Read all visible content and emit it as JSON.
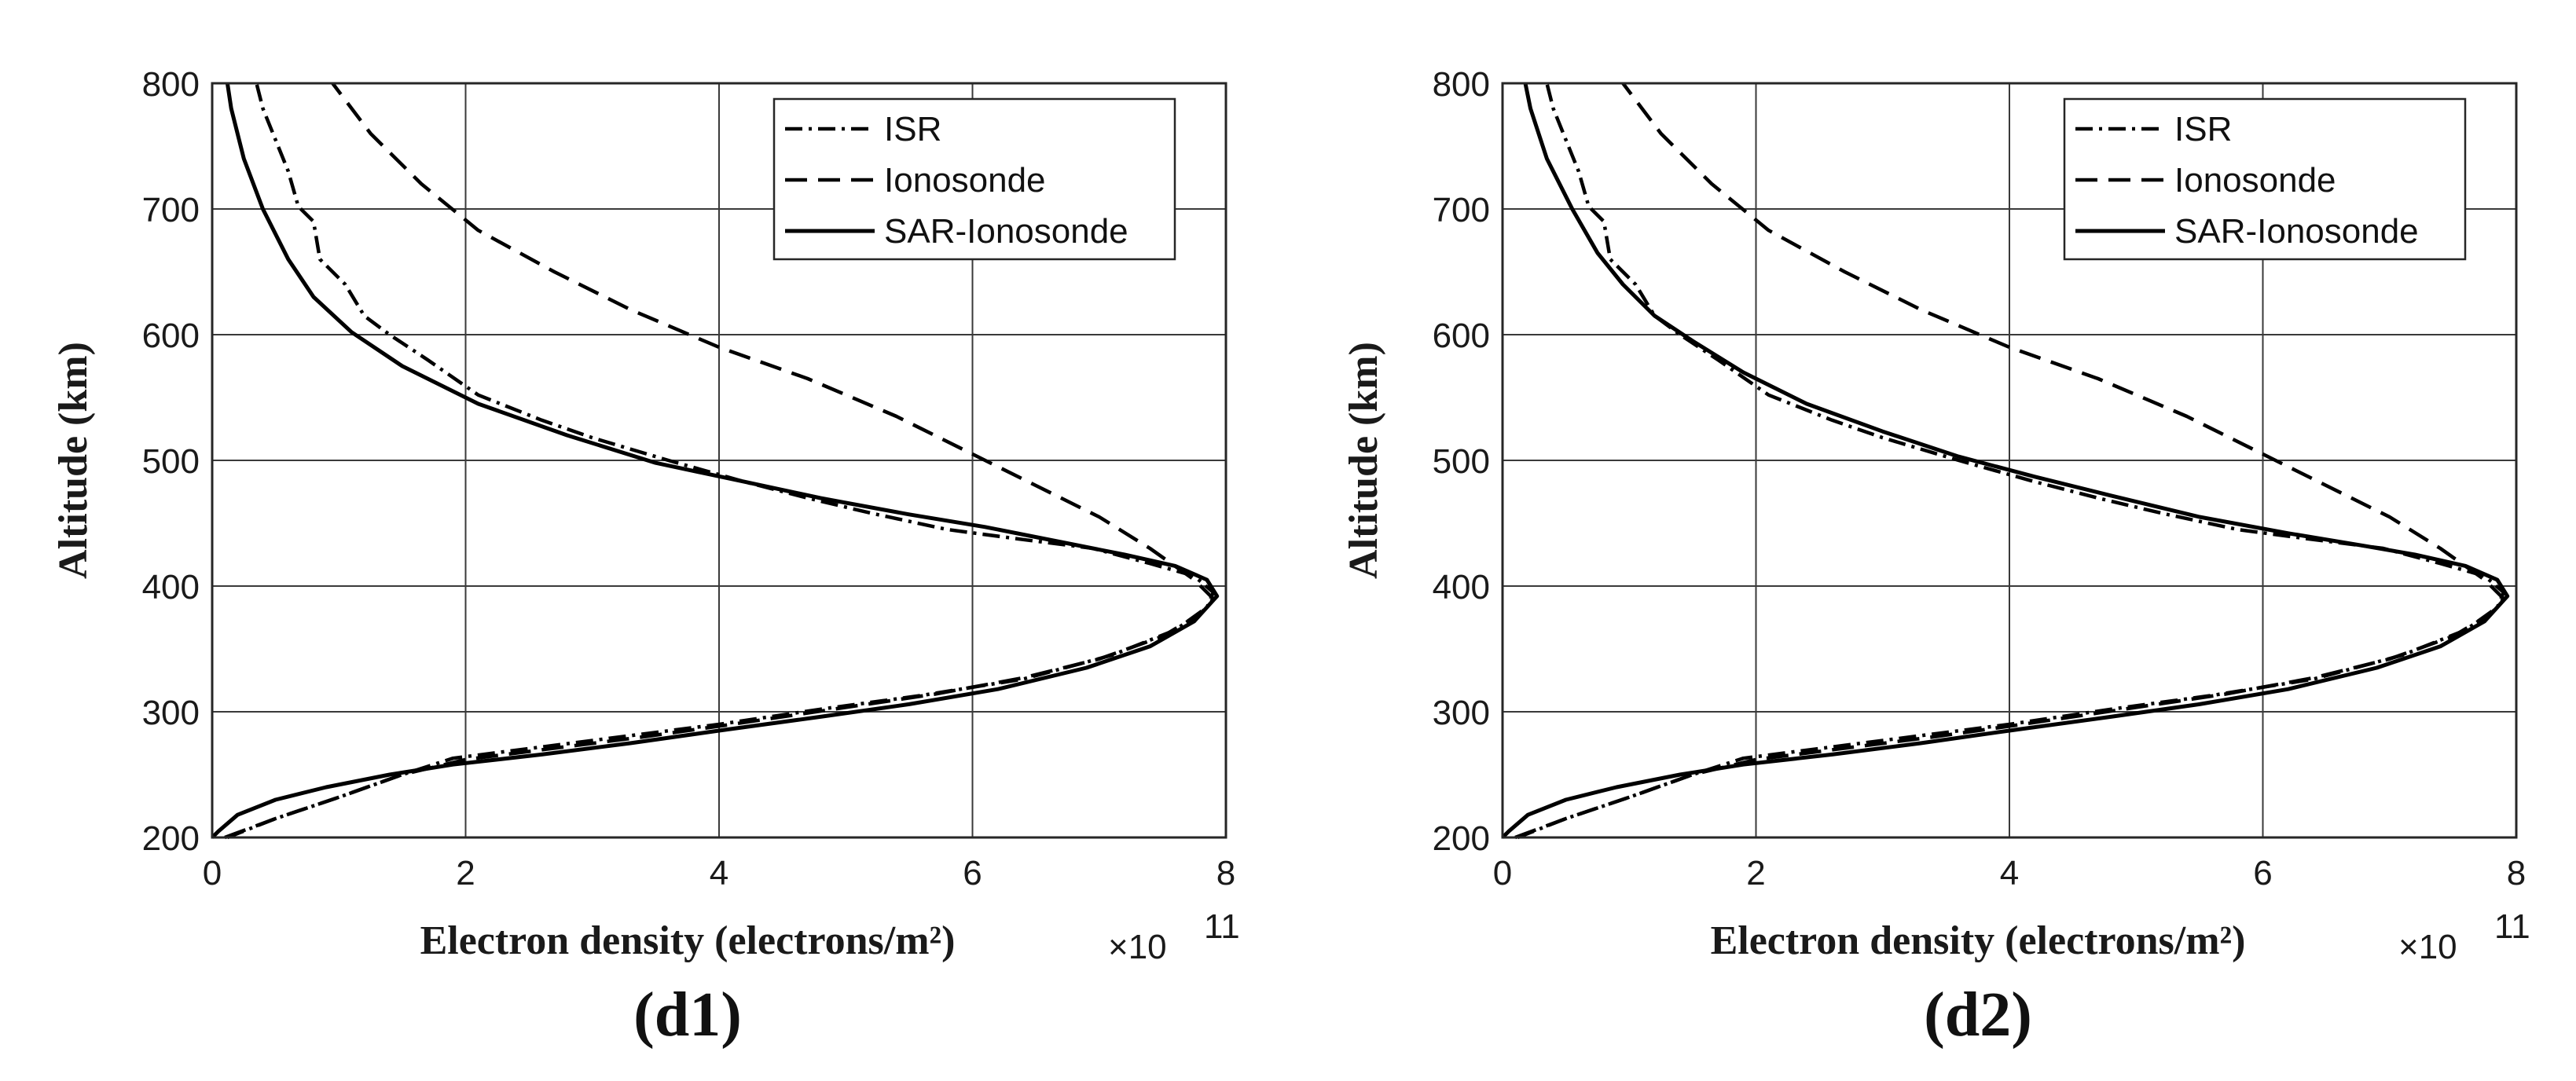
{
  "chart_data": [
    {
      "type": "line",
      "panel_label": "(d1)",
      "xlabel": "Electron density (electrons/m²)",
      "x_multiplier": "×10",
      "x_multiplier_exp": "11",
      "ylabel": "Altitude (km)",
      "xlim": [
        0,
        8
      ],
      "ylim": [
        200,
        800
      ],
      "xticks": [
        "0",
        "2",
        "4",
        "6",
        "8"
      ],
      "yticks": [
        "200",
        "300",
        "400",
        "500",
        "600",
        "700",
        "800"
      ],
      "grid": true,
      "legend_position": "top-right",
      "series": [
        {
          "name": "ISR",
          "style": "dashdot",
          "points": [
            [
              0.12,
              200
            ],
            [
              0.5,
              215
            ],
            [
              1.0,
              232
            ],
            [
              1.5,
              250
            ],
            [
              1.9,
              263
            ],
            [
              2.6,
              272
            ],
            [
              3.3,
              281
            ],
            [
              4.0,
              290
            ],
            [
              4.8,
              302
            ],
            [
              5.6,
              313
            ],
            [
              6.4,
              326
            ],
            [
              7.1,
              345
            ],
            [
              7.6,
              365
            ],
            [
              7.85,
              383
            ],
            [
              7.9,
              395
            ],
            [
              7.75,
              408
            ],
            [
              7.4,
              418
            ],
            [
              6.95,
              430
            ],
            [
              6.4,
              437
            ],
            [
              5.8,
              445
            ],
            [
              5.2,
              458
            ],
            [
              4.7,
              470
            ],
            [
              4.2,
              483
            ],
            [
              3.6,
              500
            ],
            [
              3.0,
              518
            ],
            [
              2.6,
              532
            ],
            [
              2.1,
              552
            ],
            [
              1.7,
              580
            ],
            [
              1.4,
              600
            ],
            [
              1.2,
              615
            ],
            [
              1.05,
              640
            ],
            [
              0.85,
              660
            ],
            [
              0.8,
              690
            ],
            [
              0.68,
              702
            ],
            [
              0.6,
              730
            ],
            [
              0.5,
              755
            ],
            [
              0.4,
              780
            ],
            [
              0.35,
              800
            ]
          ]
        },
        {
          "name": "Ionosonde",
          "style": "dashed",
          "points": [
            [
              0.1,
              200
            ],
            [
              0.5,
              215
            ],
            [
              1.0,
              232
            ],
            [
              1.5,
              250
            ],
            [
              2.0,
              262
            ],
            [
              2.7,
              271
            ],
            [
              3.4,
              280
            ],
            [
              4.1,
              290
            ],
            [
              4.9,
              302
            ],
            [
              5.7,
              314
            ],
            [
              6.4,
              327
            ],
            [
              7.0,
              342
            ],
            [
              7.5,
              360
            ],
            [
              7.8,
              378
            ],
            [
              7.9,
              390
            ],
            [
              7.75,
              405
            ],
            [
              7.4,
              430
            ],
            [
              7.0,
              455
            ],
            [
              6.5,
              480
            ],
            [
              6.0,
              505
            ],
            [
              5.4,
              535
            ],
            [
              4.7,
              565
            ],
            [
              4.0,
              590
            ],
            [
              3.3,
              620
            ],
            [
              2.7,
              650
            ],
            [
              2.1,
              683
            ],
            [
              1.65,
              720
            ],
            [
              1.25,
              760
            ],
            [
              0.95,
              800
            ]
          ]
        },
        {
          "name": "SAR-Ionosonde",
          "style": "solid",
          "points": [
            [
              0.0,
              200
            ],
            [
              0.05,
              205
            ],
            [
              0.2,
              218
            ],
            [
              0.5,
              230
            ],
            [
              0.9,
              240
            ],
            [
              1.4,
              250
            ],
            [
              1.9,
              258
            ],
            [
              2.6,
              266
            ],
            [
              3.3,
              275
            ],
            [
              4.0,
              285
            ],
            [
              4.8,
              296
            ],
            [
              5.5,
              306
            ],
            [
              6.2,
              318
            ],
            [
              6.9,
              335
            ],
            [
              7.4,
              352
            ],
            [
              7.75,
              372
            ],
            [
              7.93,
              392
            ],
            [
              7.85,
              405
            ],
            [
              7.6,
              416
            ],
            [
              7.2,
              425
            ],
            [
              6.7,
              435
            ],
            [
              6.1,
              447
            ],
            [
              5.5,
              457
            ],
            [
              4.8,
              470
            ],
            [
              4.2,
              483
            ],
            [
              3.5,
              498
            ],
            [
              2.8,
              520
            ],
            [
              2.1,
              545
            ],
            [
              1.5,
              575
            ],
            [
              1.1,
              602
            ],
            [
              0.8,
              630
            ],
            [
              0.6,
              660
            ],
            [
              0.4,
              700
            ],
            [
              0.25,
              740
            ],
            [
              0.15,
              780
            ],
            [
              0.12,
              800
            ]
          ]
        }
      ]
    },
    {
      "type": "line",
      "panel_label": "(d2)",
      "xlabel": "Electron density (electrons/m²)",
      "x_multiplier": "×10",
      "x_multiplier_exp": "11",
      "ylabel": "Altitude (km)",
      "xlim": [
        0,
        8
      ],
      "ylim": [
        200,
        800
      ],
      "xticks": [
        "0",
        "2",
        "4",
        "6",
        "8"
      ],
      "yticks": [
        "200",
        "300",
        "400",
        "500",
        "600",
        "700",
        "800"
      ],
      "grid": true,
      "legend_position": "top-right",
      "series": [
        {
          "name": "ISR",
          "style": "dashdot",
          "points": [
            [
              0.12,
              200
            ],
            [
              0.5,
              215
            ],
            [
              1.0,
              232
            ],
            [
              1.5,
              250
            ],
            [
              1.9,
              263
            ],
            [
              2.6,
              272
            ],
            [
              3.3,
              281
            ],
            [
              4.0,
              290
            ],
            [
              4.8,
              302
            ],
            [
              5.6,
              313
            ],
            [
              6.4,
              326
            ],
            [
              7.1,
              345
            ],
            [
              7.6,
              365
            ],
            [
              7.85,
              383
            ],
            [
              7.9,
              395
            ],
            [
              7.75,
              408
            ],
            [
              7.4,
              418
            ],
            [
              6.95,
              430
            ],
            [
              6.4,
              437
            ],
            [
              5.8,
              445
            ],
            [
              5.2,
              458
            ],
            [
              4.7,
              470
            ],
            [
              4.2,
              483
            ],
            [
              3.6,
              500
            ],
            [
              3.0,
              518
            ],
            [
              2.6,
              532
            ],
            [
              2.1,
              552
            ],
            [
              1.7,
              580
            ],
            [
              1.4,
              600
            ],
            [
              1.2,
              615
            ],
            [
              1.05,
              640
            ],
            [
              0.85,
              660
            ],
            [
              0.8,
              690
            ],
            [
              0.68,
              702
            ],
            [
              0.6,
              730
            ],
            [
              0.5,
              755
            ],
            [
              0.4,
              780
            ],
            [
              0.35,
              800
            ]
          ]
        },
        {
          "name": "Ionosonde",
          "style": "dashed",
          "points": [
            [
              0.1,
              200
            ],
            [
              0.5,
              215
            ],
            [
              1.0,
              232
            ],
            [
              1.5,
              250
            ],
            [
              2.0,
              262
            ],
            [
              2.7,
              271
            ],
            [
              3.4,
              280
            ],
            [
              4.1,
              290
            ],
            [
              4.9,
              302
            ],
            [
              5.7,
              314
            ],
            [
              6.4,
              327
            ],
            [
              7.0,
              342
            ],
            [
              7.5,
              360
            ],
            [
              7.8,
              378
            ],
            [
              7.9,
              390
            ],
            [
              7.75,
              405
            ],
            [
              7.4,
              430
            ],
            [
              7.0,
              455
            ],
            [
              6.5,
              480
            ],
            [
              6.0,
              505
            ],
            [
              5.4,
              535
            ],
            [
              4.7,
              565
            ],
            [
              4.0,
              590
            ],
            [
              3.3,
              620
            ],
            [
              2.7,
              650
            ],
            [
              2.1,
              683
            ],
            [
              1.65,
              720
            ],
            [
              1.25,
              760
            ],
            [
              0.95,
              800
            ]
          ]
        },
        {
          "name": "SAR-Ionosonde",
          "style": "solid",
          "points": [
            [
              0.0,
              200
            ],
            [
              0.05,
              205
            ],
            [
              0.2,
              218
            ],
            [
              0.5,
              230
            ],
            [
              0.9,
              240
            ],
            [
              1.4,
              250
            ],
            [
              1.9,
              258
            ],
            [
              2.6,
              266
            ],
            [
              3.3,
              275
            ],
            [
              4.0,
              285
            ],
            [
              4.8,
              296
            ],
            [
              5.5,
              306
            ],
            [
              6.2,
              318
            ],
            [
              6.9,
              335
            ],
            [
              7.4,
              352
            ],
            [
              7.75,
              372
            ],
            [
              7.93,
              392
            ],
            [
              7.85,
              405
            ],
            [
              7.6,
              416
            ],
            [
              7.2,
              425
            ],
            [
              6.8,
              432
            ],
            [
              6.2,
              442
            ],
            [
              5.5,
              455
            ],
            [
              4.8,
              472
            ],
            [
              4.2,
              487
            ],
            [
              3.6,
              503
            ],
            [
              3.0,
              523
            ],
            [
              2.4,
              545
            ],
            [
              1.9,
              570
            ],
            [
              1.5,
              595
            ],
            [
              1.2,
              615
            ],
            [
              0.95,
              640
            ],
            [
              0.75,
              665
            ],
            [
              0.55,
              700
            ],
            [
              0.35,
              740
            ],
            [
              0.22,
              780
            ],
            [
              0.18,
              800
            ]
          ]
        }
      ]
    }
  ]
}
